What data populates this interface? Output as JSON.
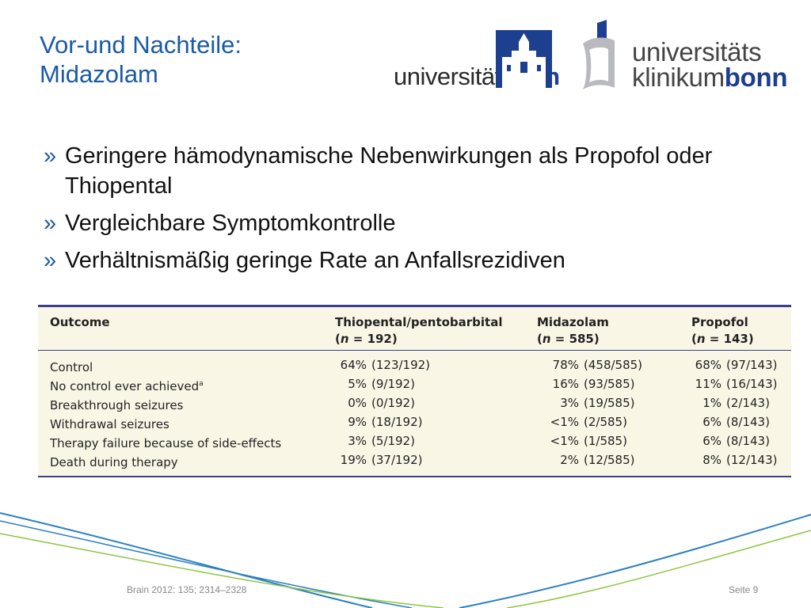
{
  "slide": {
    "title_line1": "Vor-und Nachteile:",
    "title_line2": "Midazolam"
  },
  "logos": {
    "uni_bonn": {
      "word_regular": "universität",
      "word_bold": "bonn"
    },
    "ukb": {
      "line1": "universitäts",
      "line2_regular": "klinikum",
      "line2_bold": "bonn"
    }
  },
  "bullets": [
    {
      "marker": "»",
      "text": "Geringere hämodynamische Nebenwirkungen als Propofol oder Thiopental"
    },
    {
      "marker": "»",
      "text": "Vergleichbare Symptomkontrolle"
    },
    {
      "marker": "»",
      "text": "Verhältnismäßig geringe Rate an Anfallsrezidiven"
    }
  ],
  "table": {
    "headers": {
      "outcome": "Outcome",
      "col1_name": "Thiopental/pentobarbital",
      "col1_n": "192",
      "col2_name": "Midazolam",
      "col2_n": "585",
      "col3_name": "Propofol",
      "col3_n": "143",
      "n_prefix": "(",
      "n_italic": "n",
      "n_equals": " = ",
      "n_suffix": ")"
    },
    "rows": [
      {
        "label": "Control",
        "sup": "",
        "c1p": "64%",
        "c1v": "(123/192)",
        "c2p": "78%",
        "c2v": "(458/585)",
        "c3p": "68%",
        "c3v": "(97/143)"
      },
      {
        "label": "No control ever achieved",
        "sup": "a",
        "c1p": "5%",
        "c1v": "(9/192)",
        "c2p": "16%",
        "c2v": "(93/585)",
        "c3p": "11%",
        "c3v": "(16/143)"
      },
      {
        "label": "Breakthrough seizures",
        "sup": "",
        "c1p": "0%",
        "c1v": "(0/192)",
        "c2p": "3%",
        "c2v": "(19/585)",
        "c3p": "1%",
        "c3v": "(2/143)"
      },
      {
        "label": "Withdrawal seizures",
        "sup": "",
        "c1p": "9%",
        "c1v": "(18/192)",
        "c2p": "<1%",
        "c2v": "(2/585)",
        "c3p": "6%",
        "c3v": "(8/143)"
      },
      {
        "label": "Therapy failure because of side-effects",
        "sup": "",
        "c1p": "3%",
        "c1v": "(5/192)",
        "c2p": "<1%",
        "c2v": "(1/585)",
        "c3p": "6%",
        "c3v": "(8/143)"
      },
      {
        "label": "Death during therapy",
        "sup": "",
        "c1p": "19%",
        "c1v": "(37/192)",
        "c2p": "2%",
        "c2v": "(12/585)",
        "c3p": "8%",
        "c3v": "(12/143)"
      }
    ]
  },
  "footer": {
    "source": "Brain 2012: 135; 2314–2328",
    "page": "Seite 9"
  },
  "colors": {
    "title_blue": "#1a5aa6",
    "brand_navy": "#1d3f8f",
    "table_bg": "#faf6e6",
    "table_rule": "#3b3f8c",
    "swoosh_blue": "#2a7fc0",
    "swoosh_green": "#8cc63f"
  }
}
